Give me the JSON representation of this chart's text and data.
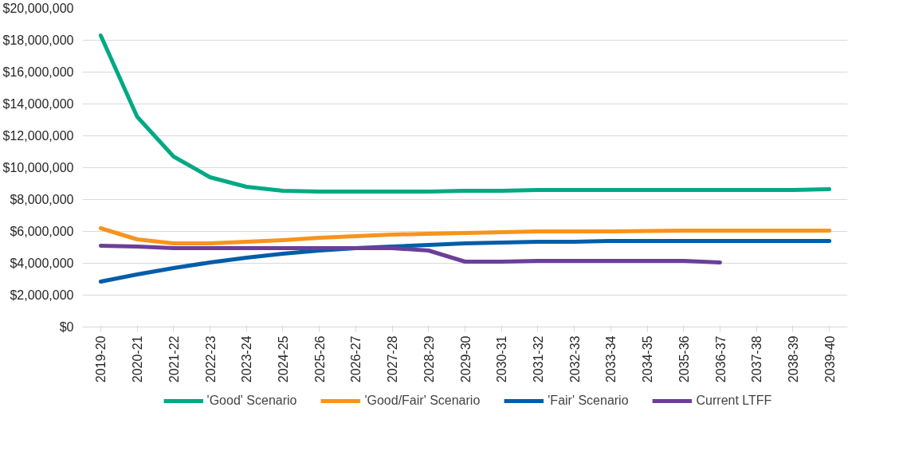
{
  "chart_data": {
    "type": "line",
    "categories": [
      "2019-20",
      "2020-21",
      "2021-22",
      "2022-23",
      "2023-24",
      "2024-25",
      "2025-26",
      "2026-27",
      "2027-28",
      "2028-29",
      "2029-30",
      "2030-31",
      "2031-32",
      "2032-33",
      "2033-34",
      "2034-35",
      "2035-36",
      "2036-37",
      "2037-38",
      "2038-39",
      "2039-40"
    ],
    "series": [
      {
        "name": "'Good' Scenario",
        "color": "#00a984",
        "values": [
          18300000,
          13200000,
          10700000,
          9400000,
          8800000,
          8550000,
          8500000,
          8500000,
          8500000,
          8500000,
          8550000,
          8550000,
          8600000,
          8600000,
          8600000,
          8600000,
          8600000,
          8600000,
          8600000,
          8600000,
          8650000
        ]
      },
      {
        "name": "'Good/Fair' Scenario",
        "color": "#f7941d",
        "values": [
          6200000,
          5500000,
          5250000,
          5250000,
          5350000,
          5450000,
          5600000,
          5700000,
          5800000,
          5850000,
          5900000,
          5950000,
          6000000,
          6000000,
          6000000,
          6020000,
          6050000,
          6050000,
          6050000,
          6050000,
          6050000
        ]
      },
      {
        "name": "'Fair' Scenario",
        "color": "#005daa",
        "values": [
          2850000,
          3300000,
          3700000,
          4050000,
          4350000,
          4600000,
          4800000,
          4950000,
          5050000,
          5150000,
          5250000,
          5300000,
          5350000,
          5350000,
          5400000,
          5400000,
          5400000,
          5400000,
          5400000,
          5400000,
          5400000
        ]
      },
      {
        "name": "Current LTFF",
        "color": "#6b3f98",
        "values": [
          5100000,
          5050000,
          4950000,
          4950000,
          4950000,
          4950000,
          4950000,
          4950000,
          4950000,
          4800000,
          4100000,
          4100000,
          4150000,
          4150000,
          4150000,
          4150000,
          4150000,
          4050000,
          null,
          null,
          null
        ]
      }
    ],
    "ylim": [
      0,
      20000000
    ],
    "yticks": [
      {
        "value": 0,
        "label": "$0"
      },
      {
        "value": 2000000,
        "label": "$2,000,000"
      },
      {
        "value": 4000000,
        "label": "$4,000,000"
      },
      {
        "value": 6000000,
        "label": "$6,000,000"
      },
      {
        "value": 8000000,
        "label": "$8,000,000"
      },
      {
        "value": 10000000,
        "label": "$10,000,000"
      },
      {
        "value": 12000000,
        "label": "$12,000,000"
      },
      {
        "value": 14000000,
        "label": "$14,000,000"
      },
      {
        "value": 16000000,
        "label": "$16,000,000"
      },
      {
        "value": 18000000,
        "label": "$18,000,000"
      },
      {
        "value": 20000000,
        "label": "$20,000,000"
      }
    ],
    "grid": "y",
    "legend": "bottom",
    "marker": "none",
    "line_style": "solid"
  }
}
